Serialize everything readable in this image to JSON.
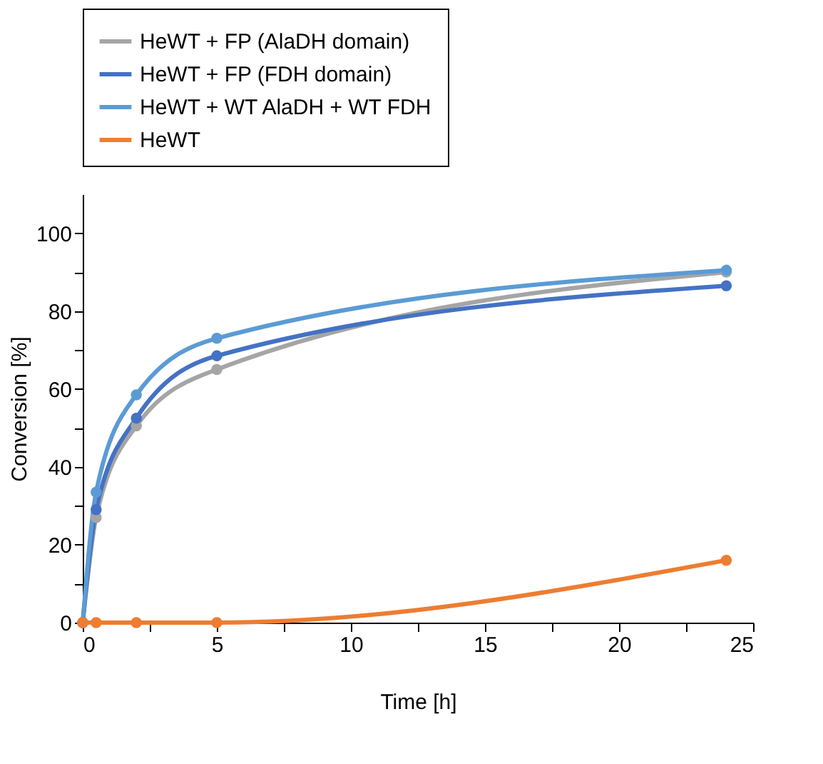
{
  "chart_data": {
    "type": "line",
    "xlabel": "Time [h]",
    "ylabel": "Conversion [%]",
    "xlim": [
      0,
      25
    ],
    "xticks": [
      0,
      {
        "value": 2.5,
        "label": null
      },
      5,
      {
        "value": 7.5,
        "label": null
      },
      10,
      {
        "value": 12.5,
        "label": null
      },
      15,
      {
        "value": 17.5,
        "label": null
      },
      20,
      {
        "value": 22.5,
        "label": null
      },
      25
    ],
    "ylim": [
      0,
      110
    ],
    "yticks": [
      0,
      {
        "value": 10,
        "label": null
      },
      20,
      {
        "value": 30,
        "label": null
      },
      40,
      {
        "value": 50,
        "label": null
      },
      60,
      {
        "value": 70,
        "label": null
      },
      80,
      {
        "value": 90,
        "label": null
      },
      100
    ],
    "x": [
      0,
      0.5,
      2,
      5,
      24
    ],
    "series": [
      {
        "name": "HeWT + FP (AlaDH domain)",
        "color": "#a5a5a5",
        "values": [
          0,
          27,
          50.5,
          65,
          90
        ]
      },
      {
        "name": "HeWT + FP (FDH domain)",
        "color": "#4472c4",
        "values": [
          0,
          29,
          52.5,
          68.5,
          86.5
        ]
      },
      {
        "name": "HeWT + WT AlaDH + WT FDH",
        "color": "#5b9bd5",
        "values": [
          0,
          33.5,
          58.5,
          73,
          90.5
        ]
      },
      {
        "name": "HeWT",
        "color": "#ed7d31",
        "values": [
          0,
          0,
          0,
          0,
          16
        ]
      }
    ],
    "marker": "circle",
    "line_style": "solid",
    "grid": false,
    "legend": "top"
  }
}
